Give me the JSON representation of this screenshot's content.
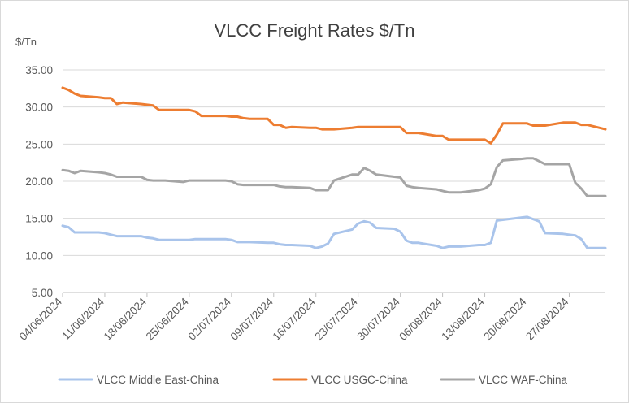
{
  "chart_data": {
    "type": "line",
    "title": "VLCC Freight Rates $/Tn",
    "ylabel": "$/Tn",
    "xlabel": "",
    "ylim": [
      5,
      35
    ],
    "yticks": [
      "5.00",
      "10.00",
      "15.00",
      "20.00",
      "25.00",
      "30.00",
      "35.00"
    ],
    "ytick_values": [
      5,
      10,
      15,
      20,
      25,
      30,
      35
    ],
    "xlim": [
      "2024-06-04",
      "2024-09-02"
    ],
    "xticks": [
      "04/06/2024",
      "11/06/2024",
      "18/06/2024",
      "25/06/2024",
      "02/07/2024",
      "09/07/2024",
      "16/07/2024",
      "23/07/2024",
      "30/07/2024",
      "06/08/2024",
      "13/08/2024",
      "20/08/2024",
      "27/08/2024"
    ],
    "xtick_dates": [
      "2024-06-04",
      "2024-06-11",
      "2024-06-18",
      "2024-06-25",
      "2024-07-02",
      "2024-07-09",
      "2024-07-16",
      "2024-07-23",
      "2024-07-30",
      "2024-08-06",
      "2024-08-13",
      "2024-08-20",
      "2024-08-27"
    ],
    "grid": true,
    "legend": "bottom",
    "series": [
      {
        "name": "VLCC Middle East-China",
        "color": "#a9c4eb",
        "points": [
          [
            "2024-06-04",
            14.0
          ],
          [
            "2024-06-05",
            13.8
          ],
          [
            "2024-06-06",
            13.1
          ],
          [
            "2024-06-07",
            13.1
          ],
          [
            "2024-06-10",
            13.1
          ],
          [
            "2024-06-11",
            13.0
          ],
          [
            "2024-06-12",
            12.8
          ],
          [
            "2024-06-13",
            12.6
          ],
          [
            "2024-06-14",
            12.6
          ],
          [
            "2024-06-17",
            12.6
          ],
          [
            "2024-06-18",
            12.4
          ],
          [
            "2024-06-19",
            12.3
          ],
          [
            "2024-06-20",
            12.1
          ],
          [
            "2024-06-21",
            12.1
          ],
          [
            "2024-06-24",
            12.1
          ],
          [
            "2024-06-25",
            12.1
          ],
          [
            "2024-06-26",
            12.2
          ],
          [
            "2024-06-27",
            12.2
          ],
          [
            "2024-06-28",
            12.2
          ],
          [
            "2024-07-01",
            12.2
          ],
          [
            "2024-07-02",
            12.1
          ],
          [
            "2024-07-03",
            11.8
          ],
          [
            "2024-07-04",
            11.8
          ],
          [
            "2024-07-05",
            11.8
          ],
          [
            "2024-07-08",
            11.7
          ],
          [
            "2024-07-09",
            11.7
          ],
          [
            "2024-07-10",
            11.5
          ],
          [
            "2024-07-11",
            11.4
          ],
          [
            "2024-07-12",
            11.4
          ],
          [
            "2024-07-15",
            11.3
          ],
          [
            "2024-07-16",
            11.0
          ],
          [
            "2024-07-17",
            11.2
          ],
          [
            "2024-07-18",
            11.6
          ],
          [
            "2024-07-19",
            12.9
          ],
          [
            "2024-07-22",
            13.5
          ],
          [
            "2024-07-23",
            14.3
          ],
          [
            "2024-07-24",
            14.6
          ],
          [
            "2024-07-25",
            14.4
          ],
          [
            "2024-07-26",
            13.7
          ],
          [
            "2024-07-29",
            13.6
          ],
          [
            "2024-07-30",
            13.2
          ],
          [
            "2024-07-31",
            12.0
          ],
          [
            "2024-08-01",
            11.7
          ],
          [
            "2024-08-02",
            11.7
          ],
          [
            "2024-08-05",
            11.3
          ],
          [
            "2024-08-06",
            11.0
          ],
          [
            "2024-08-07",
            11.2
          ],
          [
            "2024-08-08",
            11.2
          ],
          [
            "2024-08-09",
            11.2
          ],
          [
            "2024-08-12",
            11.4
          ],
          [
            "2024-08-13",
            11.4
          ],
          [
            "2024-08-14",
            11.7
          ],
          [
            "2024-08-15",
            14.7
          ],
          [
            "2024-08-16",
            14.8
          ],
          [
            "2024-08-19",
            15.1
          ],
          [
            "2024-08-20",
            15.2
          ],
          [
            "2024-08-21",
            14.9
          ],
          [
            "2024-08-22",
            14.6
          ],
          [
            "2024-08-23",
            13.0
          ],
          [
            "2024-08-26",
            12.9
          ],
          [
            "2024-08-27",
            12.8
          ],
          [
            "2024-08-28",
            12.7
          ],
          [
            "2024-08-29",
            12.2
          ],
          [
            "2024-08-30",
            11.0
          ],
          [
            "2024-09-02",
            11.0
          ]
        ]
      },
      {
        "name": "VLCC USGC-China",
        "color": "#ed7d31",
        "points": [
          [
            "2024-06-04",
            32.6
          ],
          [
            "2024-06-05",
            32.3
          ],
          [
            "2024-06-06",
            31.8
          ],
          [
            "2024-06-07",
            31.5
          ],
          [
            "2024-06-10",
            31.3
          ],
          [
            "2024-06-11",
            31.2
          ],
          [
            "2024-06-12",
            31.2
          ],
          [
            "2024-06-13",
            30.4
          ],
          [
            "2024-06-14",
            30.6
          ],
          [
            "2024-06-17",
            30.4
          ],
          [
            "2024-06-18",
            30.3
          ],
          [
            "2024-06-19",
            30.2
          ],
          [
            "2024-06-20",
            29.6
          ],
          [
            "2024-06-21",
            29.6
          ],
          [
            "2024-06-24",
            29.6
          ],
          [
            "2024-06-25",
            29.6
          ],
          [
            "2024-06-26",
            29.4
          ],
          [
            "2024-06-27",
            28.8
          ],
          [
            "2024-06-28",
            28.8
          ],
          [
            "2024-07-01",
            28.8
          ],
          [
            "2024-07-02",
            28.7
          ],
          [
            "2024-07-03",
            28.7
          ],
          [
            "2024-07-04",
            28.5
          ],
          [
            "2024-07-05",
            28.4
          ],
          [
            "2024-07-08",
            28.4
          ],
          [
            "2024-07-09",
            27.6
          ],
          [
            "2024-07-10",
            27.6
          ],
          [
            "2024-07-11",
            27.2
          ],
          [
            "2024-07-12",
            27.3
          ],
          [
            "2024-07-15",
            27.2
          ],
          [
            "2024-07-16",
            27.2
          ],
          [
            "2024-07-17",
            27.0
          ],
          [
            "2024-07-18",
            27.0
          ],
          [
            "2024-07-19",
            27.0
          ],
          [
            "2024-07-22",
            27.2
          ],
          [
            "2024-07-23",
            27.3
          ],
          [
            "2024-07-24",
            27.3
          ],
          [
            "2024-07-25",
            27.3
          ],
          [
            "2024-07-26",
            27.3
          ],
          [
            "2024-07-29",
            27.3
          ],
          [
            "2024-07-30",
            27.3
          ],
          [
            "2024-07-31",
            26.5
          ],
          [
            "2024-08-01",
            26.5
          ],
          [
            "2024-08-02",
            26.5
          ],
          [
            "2024-08-05",
            26.1
          ],
          [
            "2024-08-06",
            26.1
          ],
          [
            "2024-08-07",
            25.6
          ],
          [
            "2024-08-08",
            25.6
          ],
          [
            "2024-08-09",
            25.6
          ],
          [
            "2024-08-12",
            25.6
          ],
          [
            "2024-08-13",
            25.6
          ],
          [
            "2024-08-14",
            25.1
          ],
          [
            "2024-08-15",
            26.3
          ],
          [
            "2024-08-16",
            27.8
          ],
          [
            "2024-08-19",
            27.8
          ],
          [
            "2024-08-20",
            27.8
          ],
          [
            "2024-08-21",
            27.5
          ],
          [
            "2024-08-22",
            27.5
          ],
          [
            "2024-08-23",
            27.5
          ],
          [
            "2024-08-26",
            27.9
          ],
          [
            "2024-08-27",
            27.9
          ],
          [
            "2024-08-28",
            27.9
          ],
          [
            "2024-08-29",
            27.6
          ],
          [
            "2024-08-30",
            27.6
          ],
          [
            "2024-09-02",
            27.0
          ]
        ]
      },
      {
        "name": "VLCC WAF-China",
        "color": "#a5a5a5",
        "points": [
          [
            "2024-06-04",
            21.5
          ],
          [
            "2024-06-05",
            21.4
          ],
          [
            "2024-06-06",
            21.1
          ],
          [
            "2024-06-07",
            21.4
          ],
          [
            "2024-06-10",
            21.2
          ],
          [
            "2024-06-11",
            21.1
          ],
          [
            "2024-06-12",
            20.9
          ],
          [
            "2024-06-13",
            20.6
          ],
          [
            "2024-06-14",
            20.6
          ],
          [
            "2024-06-17",
            20.6
          ],
          [
            "2024-06-18",
            20.2
          ],
          [
            "2024-06-19",
            20.1
          ],
          [
            "2024-06-20",
            20.1
          ],
          [
            "2024-06-21",
            20.1
          ],
          [
            "2024-06-24",
            19.9
          ],
          [
            "2024-06-25",
            20.1
          ],
          [
            "2024-06-26",
            20.1
          ],
          [
            "2024-06-27",
            20.1
          ],
          [
            "2024-06-28",
            20.1
          ],
          [
            "2024-07-01",
            20.1
          ],
          [
            "2024-07-02",
            20.0
          ],
          [
            "2024-07-03",
            19.6
          ],
          [
            "2024-07-04",
            19.5
          ],
          [
            "2024-07-05",
            19.5
          ],
          [
            "2024-07-08",
            19.5
          ],
          [
            "2024-07-09",
            19.5
          ],
          [
            "2024-07-10",
            19.3
          ],
          [
            "2024-07-11",
            19.2
          ],
          [
            "2024-07-12",
            19.2
          ],
          [
            "2024-07-15",
            19.1
          ],
          [
            "2024-07-16",
            18.8
          ],
          [
            "2024-07-17",
            18.8
          ],
          [
            "2024-07-18",
            18.8
          ],
          [
            "2024-07-19",
            20.1
          ],
          [
            "2024-07-22",
            20.9
          ],
          [
            "2024-07-23",
            20.9
          ],
          [
            "2024-07-24",
            21.8
          ],
          [
            "2024-07-25",
            21.4
          ],
          [
            "2024-07-26",
            20.9
          ],
          [
            "2024-07-29",
            20.6
          ],
          [
            "2024-07-30",
            20.5
          ],
          [
            "2024-07-31",
            19.4
          ],
          [
            "2024-08-01",
            19.2
          ],
          [
            "2024-08-02",
            19.1
          ],
          [
            "2024-08-05",
            18.9
          ],
          [
            "2024-08-06",
            18.7
          ],
          [
            "2024-08-07",
            18.5
          ],
          [
            "2024-08-08",
            18.5
          ],
          [
            "2024-08-09",
            18.5
          ],
          [
            "2024-08-12",
            18.8
          ],
          [
            "2024-08-13",
            19.0
          ],
          [
            "2024-08-14",
            19.6
          ],
          [
            "2024-08-15",
            21.9
          ],
          [
            "2024-08-16",
            22.8
          ],
          [
            "2024-08-19",
            23.0
          ],
          [
            "2024-08-20",
            23.1
          ],
          [
            "2024-08-21",
            23.1
          ],
          [
            "2024-08-22",
            22.7
          ],
          [
            "2024-08-23",
            22.3
          ],
          [
            "2024-08-26",
            22.3
          ],
          [
            "2024-08-27",
            22.3
          ],
          [
            "2024-08-28",
            19.8
          ],
          [
            "2024-08-29",
            19.0
          ],
          [
            "2024-08-30",
            18.0
          ],
          [
            "2024-09-02",
            18.0
          ]
        ]
      }
    ]
  }
}
